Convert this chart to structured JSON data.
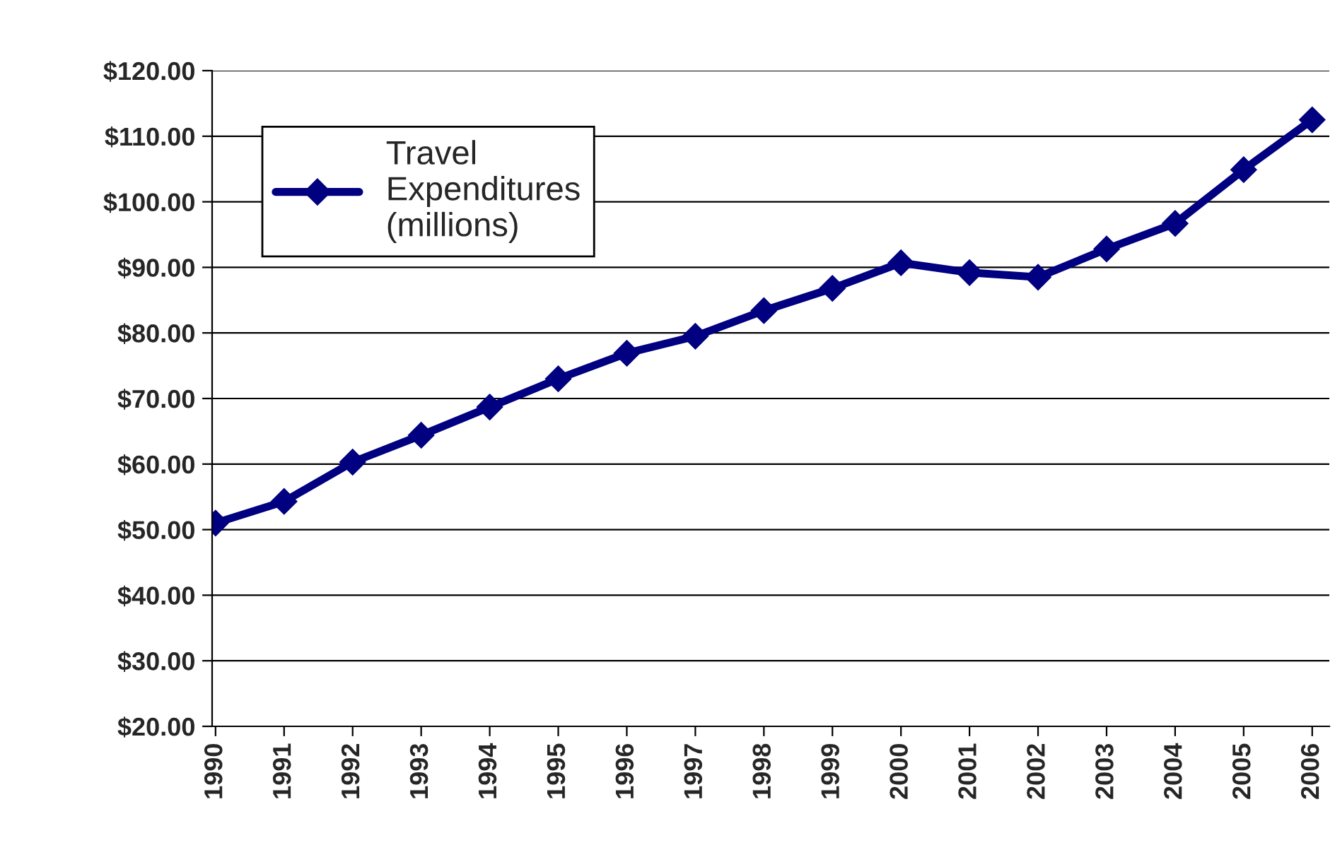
{
  "chart_data": {
    "type": "line",
    "categories": [
      "1990",
      "1991",
      "1992",
      "1993",
      "1994",
      "1995",
      "1996",
      "1997",
      "1998",
      "1999",
      "2000",
      "2001",
      "2002",
      "2003",
      "2004",
      "2005",
      "2006"
    ],
    "series": [
      {
        "name": "Travel\nExpenditures\n(millions)",
        "color": "#000080",
        "values": [
          51,
          54.3,
          60.3,
          64.4,
          68.7,
          73,
          76.9,
          79.5,
          83.4,
          86.8,
          90.7,
          89.2,
          88.5,
          92.8,
          96.7,
          104.9,
          112.5
        ]
      }
    ],
    "ylim": [
      20,
      120
    ],
    "yticks": [
      {
        "value": 20,
        "label": "$20.00"
      },
      {
        "value": 30,
        "label": "$30.00"
      },
      {
        "value": 40,
        "label": "$40.00"
      },
      {
        "value": 50,
        "label": "$50.00"
      },
      {
        "value": 60,
        "label": "$60.00"
      },
      {
        "value": 70,
        "label": "$70.00"
      },
      {
        "value": 80,
        "label": "$80.00"
      },
      {
        "value": 90,
        "label": "$90.00"
      },
      {
        "value": 100,
        "label": "$100.00"
      },
      {
        "value": 110,
        "label": "$110.00"
      },
      {
        "value": 120,
        "label": "$120.00"
      }
    ],
    "grid": "y",
    "legend": "top left",
    "marker": "diamond",
    "line_style": "solid"
  }
}
